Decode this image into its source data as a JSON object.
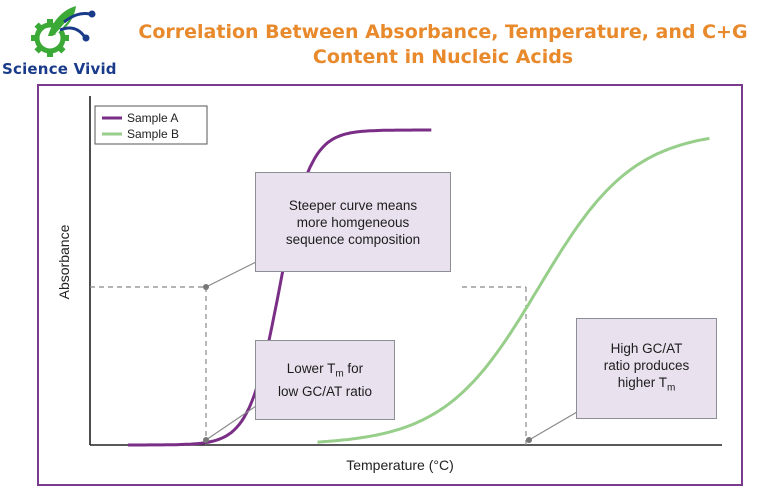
{
  "brand": {
    "name": "Science Vivid",
    "colors": {
      "green": "#3aa935",
      "blue": "#1a3a8a"
    }
  },
  "header": {
    "title_line1": "Correlation Between Absorbance, Temperature, and C+G",
    "title_line2": "Content in Nucleic Acids",
    "color": "#e8892b"
  },
  "chart_data": {
    "type": "line",
    "title": "Correlation Between Absorbance, Temperature, and C+G Content in Nucleic Acids",
    "xlabel": "Temperature (°C)",
    "ylabel": "Absorbance",
    "xlim": [
      0,
      100
    ],
    "ylim": [
      0,
      100
    ],
    "grid": false,
    "legend_position": "top-left",
    "series": [
      {
        "name": "Sample A",
        "color": "#7a2e86",
        "tm": 30,
        "steepness": 2.4,
        "x_start": 6,
        "x_end": 54
      },
      {
        "name": "Sample B",
        "color": "#97ce8a",
        "tm": 71,
        "steepness": 7.5,
        "x_start": 36,
        "x_end": 98
      }
    ],
    "annotations": [
      {
        "id": "steep",
        "lines": [
          "Steeper curve means",
          "more homgeneous",
          "sequence composition"
        ]
      },
      {
        "id": "low",
        "lines": [
          "Lower T",
          "m",
          " for",
          "low GC/AT ratio"
        ]
      },
      {
        "id": "high",
        "lines": [
          "High GC/AT",
          "ratio produces",
          "higher T",
          "m"
        ]
      }
    ]
  }
}
